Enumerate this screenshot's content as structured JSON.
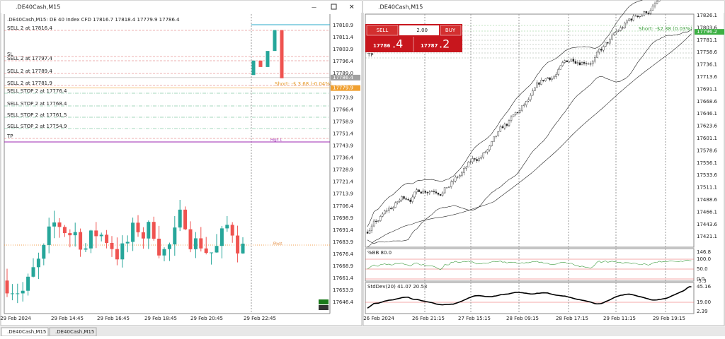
{
  "windows": [
    {
      "title": ".DE40Cash,M15",
      "info": ".DE40Cash,M15:  DE 40 Index CFD  17816.7 17818.4 17779.9 17786.4",
      "order_lines": [
        "SELL 2 at 17816.4",
        "SL",
        "SELL 2 at 17797.4",
        "SELL 2 at 17789.4",
        "SELL 2 at 17781.9",
        "SELL STOP 2 at 17776.4",
        "SELL STOP 2 at 17768.4",
        "SELL STOP 2 at 17761.5",
        "SELL STOP 2 at 17754.9",
        "TP"
      ],
      "position": "Short: -$ 3.68 (-0.04%)",
      "high_label": "High 1",
      "pivot_label": "Pivot",
      "price_axis": [
        "17818.9",
        "17811.4",
        "17803.9",
        "17796.4",
        "17789.0",
        "17773.9",
        "17766.4",
        "17758.9",
        "17751.4",
        "17743.9",
        "17736.4",
        "17728.9",
        "17721.4",
        "17713.9",
        "17706.4",
        "17698.9",
        "17691.4",
        "17683.9",
        "17676.4",
        "17668.9",
        "17661.4",
        "17653.9",
        "17646.4"
      ],
      "bid_box": "17786.4",
      "stop_box": "17779.9",
      "date_axis": [
        "29 Feb 2024",
        "29 Feb 14:45",
        "29 Feb 16:45",
        "29 Feb 18:45",
        "29 Feb 20:45",
        "29 Feb 22:45"
      ]
    },
    {
      "title": ".DE40Cash,M15",
      "trade_panel": {
        "sell": "SELL",
        "volume": "2.00",
        "buy": "BUY",
        "sell_main": "17786",
        "sell_frac": ".4",
        "buy_main": "17787",
        "buy_frac": ".2"
      },
      "position": "Short: -$2.38 (0.03%)",
      "tp_label": "TP",
      "price_axis": [
        "17826.1",
        "17803.6",
        "17781.1",
        "17758.6",
        "17736.1",
        "17713.6",
        "17691.1",
        "17668.6",
        "17646.1",
        "17623.6",
        "17601.1",
        "17578.6",
        "17556.1",
        "17533.6",
        "17511.1",
        "17488.6",
        "17466.1",
        "17443.6",
        "17421.1"
      ],
      "bid_box": "17796.2",
      "bb_label": "%BB 80.0",
      "bb_axis": [
        "146.8",
        "100.0",
        "50.0",
        "0.0",
        "-5.3"
      ],
      "sd_label": "StdDev(20) 41.07 20.53",
      "sd_axis": [
        "45.16",
        "19.00",
        "2.39"
      ],
      "date_axis": [
        "26 Feb 2024",
        "26 Feb 21:15",
        "27 Feb 15:15",
        "28 Feb 09:15",
        "28 Feb 17:15",
        "29 Feb 11:15",
        "29 Feb 19:15"
      ]
    }
  ],
  "tabs": [
    ".DE40Cash,M15",
    ".DE40Cash,M15"
  ]
}
